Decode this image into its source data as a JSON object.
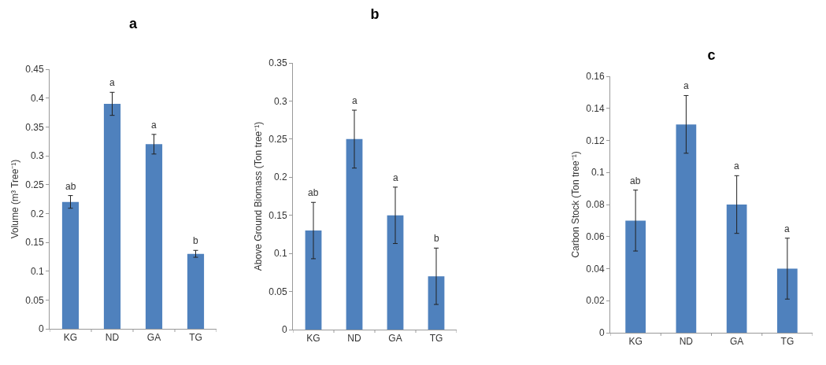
{
  "chart_data": [
    {
      "type": "bar",
      "title": "a",
      "ylabel": "Volume (m³ Tree⁻¹)",
      "categories": [
        "KG",
        "ND",
        "GA",
        "TG"
      ],
      "values": [
        0.22,
        0.39,
        0.32,
        0.13
      ],
      "errors": [
        0.011,
        0.02,
        0.017,
        0.006
      ],
      "color": "#4f81bd",
      "ylim": [
        0,
        0.45
      ],
      "yticks": [
        0,
        0.05,
        0.1,
        0.15,
        0.2,
        0.25,
        0.3,
        0.35,
        0.4,
        0.45
      ],
      "grid": false,
      "annotations": [
        {
          "text": "ab",
          "x": "KG",
          "y": 0.231
        },
        {
          "text": "a",
          "x": "ND",
          "y": 0.41
        },
        {
          "text": "a",
          "x": "GA",
          "y": 0.337
        },
        {
          "text": "b",
          "x": "TG",
          "y": 0.136
        }
      ]
    },
    {
      "type": "bar",
      "title": "b",
      "ylabel": "Above Ground Biomass (Ton tree⁻¹)",
      "categories": [
        "KG",
        "ND",
        "GA",
        "TG"
      ],
      "values": [
        0.13,
        0.25,
        0.15,
        0.07
      ],
      "errors": [
        0.037,
        0.038,
        0.037,
        0.037
      ],
      "color": "#4f81bd",
      "ylim": [
        0,
        0.35
      ],
      "yticks": [
        0,
        0.05,
        0.1,
        0.15,
        0.2,
        0.25,
        0.3,
        0.35
      ],
      "grid": false,
      "annotations": [
        {
          "text": "ab",
          "x": "KG",
          "y": 0.167
        },
        {
          "text": "a",
          "x": "ND",
          "y": 0.288
        },
        {
          "text": "a",
          "x": "GA",
          "y": 0.187
        },
        {
          "text": "b",
          "x": "TG",
          "y": 0.107
        }
      ]
    },
    {
      "type": "bar",
      "title": "c",
      "ylabel": "Carbon Stock (Ton tree⁻¹)",
      "categories": [
        "KG",
        "ND",
        "GA",
        "TG"
      ],
      "values": [
        0.07,
        0.13,
        0.08,
        0.04
      ],
      "errors": [
        0.019,
        0.018,
        0.018,
        0.019
      ],
      "color": "#4f81bd",
      "ylim": [
        0,
        0.16
      ],
      "yticks": [
        0,
        0.02,
        0.04,
        0.06,
        0.08,
        0.1,
        0.12,
        0.14,
        0.16
      ],
      "grid": false,
      "annotations": [
        {
          "text": "ab",
          "x": "KG",
          "y": 0.089
        },
        {
          "text": "a",
          "x": "ND",
          "y": 0.148
        },
        {
          "text": "a",
          "x": "GA",
          "y": 0.098
        },
        {
          "text": "a",
          "x": "TG",
          "y": 0.059
        }
      ]
    }
  ]
}
